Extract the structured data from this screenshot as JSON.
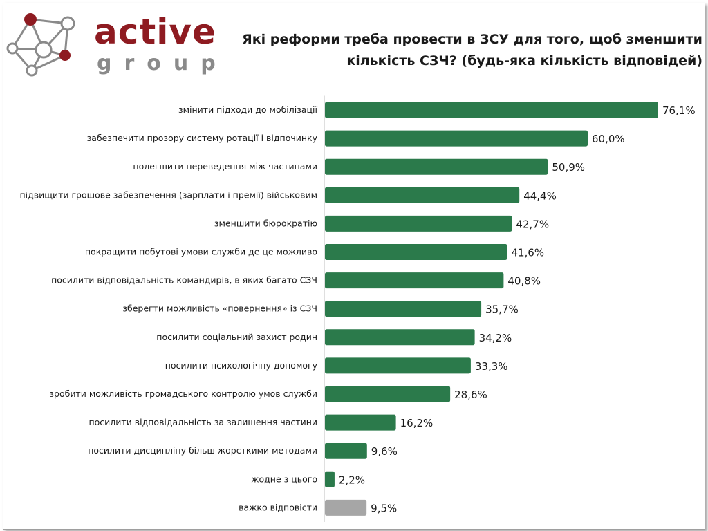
{
  "logo": {
    "word": "active",
    "sub": "group"
  },
  "colors": {
    "bar": "#2b7a4b",
    "bar_muted": "#a6a6a6",
    "logo_red": "#8e1b21",
    "logo_gray": "#8a8a8a"
  },
  "chart_data": {
    "type": "bar",
    "orientation": "horizontal",
    "title_line1": "Які реформи треба провести в ЗСУ для того, щоб зменшити",
    "title_line2": "кількість СЗЧ? (будь-яка кількість відповідей)",
    "categories": [
      "змінити підходи до мобілізації",
      "забезпечити прозору систему ротації і відпочинку",
      "полегшити переведення між частинами",
      "підвищити грошове забезпечення (зарплати і премії) військовим",
      "зменшити бюрократію",
      "покращити побутові умови служби де це можливо",
      "посилити відповідальність командирів, в яких багато СЗЧ",
      "зберегти можливість «повернення» із СЗЧ",
      "посилити соціальний захист родин",
      "посилити психологічну допомогу",
      "зробити можливість громадського контролю умов служби",
      "посилити відповідальність за залишення частини",
      "посилити дисципліну більш жорсткими методами",
      "жодне з цього",
      "важко відповісти"
    ],
    "values": [
      76.1,
      60.0,
      50.9,
      44.4,
      42.7,
      41.6,
      40.8,
      35.7,
      34.2,
      33.3,
      28.6,
      16.2,
      9.6,
      2.2,
      9.5
    ],
    "value_labels": [
      "76,1%",
      "60,0%",
      "50,9%",
      "44,4%",
      "42,7%",
      "41,6%",
      "40,8%",
      "35,7%",
      "34,2%",
      "33,3%",
      "28,6%",
      "16,2%",
      "9,6%",
      "2,2%",
      "9,5%"
    ],
    "muted_categories": [
      "важко відповісти"
    ],
    "xlim": [
      0,
      78
    ],
    "unit": "%",
    "grid": false,
    "legend": "none"
  }
}
